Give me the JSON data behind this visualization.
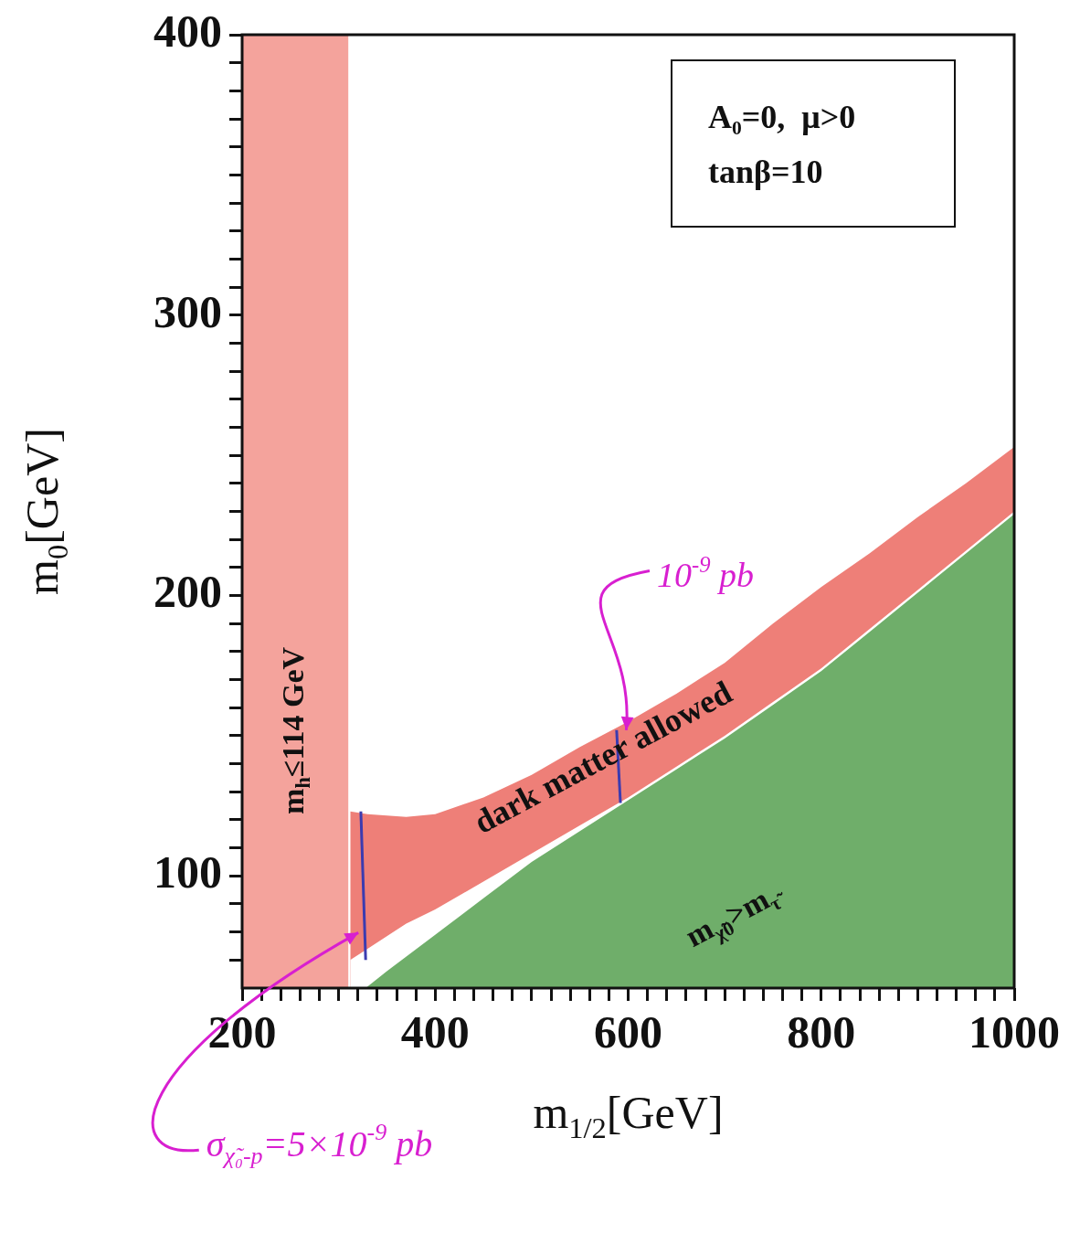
{
  "chart_data": {
    "type": "area",
    "xlabel": "m$_{1/2}$[GeV]",
    "ylabel": "m$_{0}$[GeV]",
    "xlim": [
      200,
      1000
    ],
    "ylim": [
      60,
      400
    ],
    "xticks": [
      200,
      {
        "value": 220,
        "label": null
      },
      {
        "value": 240,
        "label": null
      },
      {
        "value": 260,
        "label": null
      },
      {
        "value": 280,
        "label": null
      },
      {
        "value": 300,
        "label": null
      },
      {
        "value": 320,
        "label": null
      },
      {
        "value": 340,
        "label": null
      },
      {
        "value": 360,
        "label": null
      },
      {
        "value": 380,
        "label": null
      },
      400,
      {
        "value": 420,
        "label": null
      },
      {
        "value": 440,
        "label": null
      },
      {
        "value": 460,
        "label": null
      },
      {
        "value": 480,
        "label": null
      },
      {
        "value": 500,
        "label": null
      },
      {
        "value": 520,
        "label": null
      },
      {
        "value": 540,
        "label": null
      },
      {
        "value": 560,
        "label": null
      },
      {
        "value": 580,
        "label": null
      },
      600,
      {
        "value": 620,
        "label": null
      },
      {
        "value": 640,
        "label": null
      },
      {
        "value": 660,
        "label": null
      },
      {
        "value": 680,
        "label": null
      },
      {
        "value": 700,
        "label": null
      },
      {
        "value": 720,
        "label": null
      },
      {
        "value": 740,
        "label": null
      },
      {
        "value": 760,
        "label": null
      },
      {
        "value": 780,
        "label": null
      },
      800,
      {
        "value": 820,
        "label": null
      },
      {
        "value": 840,
        "label": null
      },
      {
        "value": 860,
        "label": null
      },
      {
        "value": 880,
        "label": null
      },
      {
        "value": 900,
        "label": null
      },
      {
        "value": 920,
        "label": null
      },
      {
        "value": 940,
        "label": null
      },
      {
        "value": 960,
        "label": null
      },
      {
        "value": 980,
        "label": null
      },
      1000
    ],
    "yticks": [
      {
        "value": 70,
        "label": null
      },
      {
        "value": 80,
        "label": null
      },
      {
        "value": 90,
        "label": null
      },
      100,
      {
        "value": 110,
        "label": null
      },
      {
        "value": 120,
        "label": null
      },
      {
        "value": 130,
        "label": null
      },
      {
        "value": 140,
        "label": null
      },
      {
        "value": 150,
        "label": null
      },
      {
        "value": 160,
        "label": null
      },
      {
        "value": 170,
        "label": null
      },
      {
        "value": 180,
        "label": null
      },
      {
        "value": 190,
        "label": null
      },
      200,
      {
        "value": 210,
        "label": null
      },
      {
        "value": 220,
        "label": null
      },
      {
        "value": 230,
        "label": null
      },
      {
        "value": 240,
        "label": null
      },
      {
        "value": 250,
        "label": null
      },
      {
        "value": 260,
        "label": null
      },
      {
        "value": 270,
        "label": null
      },
      {
        "value": 280,
        "label": null
      },
      {
        "value": 290,
        "label": null
      },
      300,
      {
        "value": 310,
        "label": null
      },
      {
        "value": 320,
        "label": null
      },
      {
        "value": 330,
        "label": null
      },
      {
        "value": 340,
        "label": null
      },
      {
        "value": 350,
        "label": null
      },
      {
        "value": 360,
        "label": null
      },
      {
        "value": 370,
        "label": null
      },
      {
        "value": 380,
        "label": null
      },
      {
        "value": 390,
        "label": null
      },
      400
    ],
    "series": [
      {
        "type": "area",
        "color": "#ee7f78",
        "x": [
          312,
          330,
          370,
          400,
          450,
          500,
          550,
          600,
          650,
          700,
          750,
          800,
          850,
          900,
          950,
          1000
        ],
        "values": [
          123,
          122,
          121,
          122,
          128,
          136,
          146,
          155,
          165,
          176,
          190,
          203,
          215,
          228,
          240,
          253
        ]
      },
      {
        "type": "area",
        "color": "#ffffff",
        "x": [
          312,
          330,
          370,
          400,
          450,
          500,
          550,
          600,
          650,
          700,
          750,
          800,
          850,
          900,
          950,
          1000
        ],
        "values": [
          70,
          74,
          83,
          88,
          98,
          108,
          118,
          128,
          139,
          150,
          162,
          174,
          188,
          202,
          216,
          230
        ]
      },
      {
        "type": "area",
        "color": "#6fae6a",
        "x": [
          328,
          350,
          400,
          450,
          500,
          550,
          600,
          650,
          700,
          750,
          800,
          850,
          900,
          950,
          1000
        ],
        "values": [
          60,
          66,
          79,
          92,
          105,
          116,
          127,
          138,
          149,
          161,
          173,
          187,
          201,
          215,
          229
        ]
      },
      {
        "type": "line",
        "color": "#3b3bb0",
        "x": [
          323,
          328
        ],
        "values": [
          123,
          70
        ]
      },
      {
        "type": "line",
        "color": "#3b3bb0",
        "x": [
          588,
          592
        ],
        "values": [
          152,
          126
        ]
      }
    ],
    "bands": [
      {
        "axis": "x",
        "from": 200,
        "to": 310,
        "label": "m$_{h}$≤114 GeV",
        "color": "#f4a39c"
      }
    ],
    "annotations": [
      "A₀=0,  μ>0",
      "tanβ=10",
      "dark matter allowed",
      "m$_{χ̃0}$>m$_{τ̃}$",
      {
        "text": "10$^{-9}$ pb",
        "x": 598,
        "y": 152
      },
      "σ$_{χ̃₀-p}$=5×10$^{-9}$ pb"
    ],
    "line_style": "solid",
    "marker": "none"
  }
}
